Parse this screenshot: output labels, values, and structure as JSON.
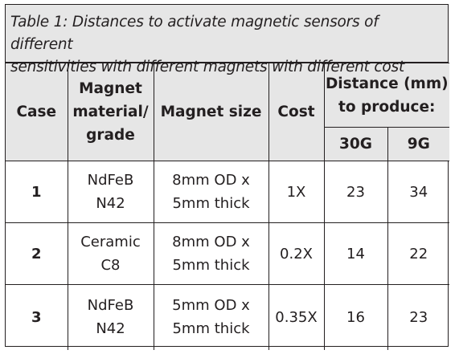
{
  "caption": {
    "line1": "Table 1: Distances to activate magnetic sensors of different",
    "line2": "sensitivities with different magnets with different cost"
  },
  "headers": {
    "case": "Case",
    "material_line1": "Magnet",
    "material_line2": "material/",
    "material_line3": "grade",
    "size": "Magnet size",
    "cost": "Cost",
    "distance_line1": "Distance (mm)",
    "distance_line2": "to produce:",
    "sub_30g": "30G",
    "sub_9g": "9G"
  },
  "rows": [
    {
      "case": "1",
      "material_line1": "NdFeB",
      "material_line2": "N42",
      "size_line1": "8mm OD x",
      "size_line2": "5mm thick",
      "cost": "1X",
      "d30g": "23",
      "d9g": "34"
    },
    {
      "case": "2",
      "material_line1": "Ceramic",
      "material_line2": "C8",
      "size_line1": "8mm OD x",
      "size_line2": "5mm thick",
      "cost": "0.2X",
      "d30g": "14",
      "d9g": "22"
    },
    {
      "case": "3",
      "material_line1": "NdFeB",
      "material_line2": "N42",
      "size_line1": "5mm OD x",
      "size_line2": "5mm thick",
      "cost": "0.35X",
      "d30g": "16",
      "d9g": "23"
    }
  ]
}
